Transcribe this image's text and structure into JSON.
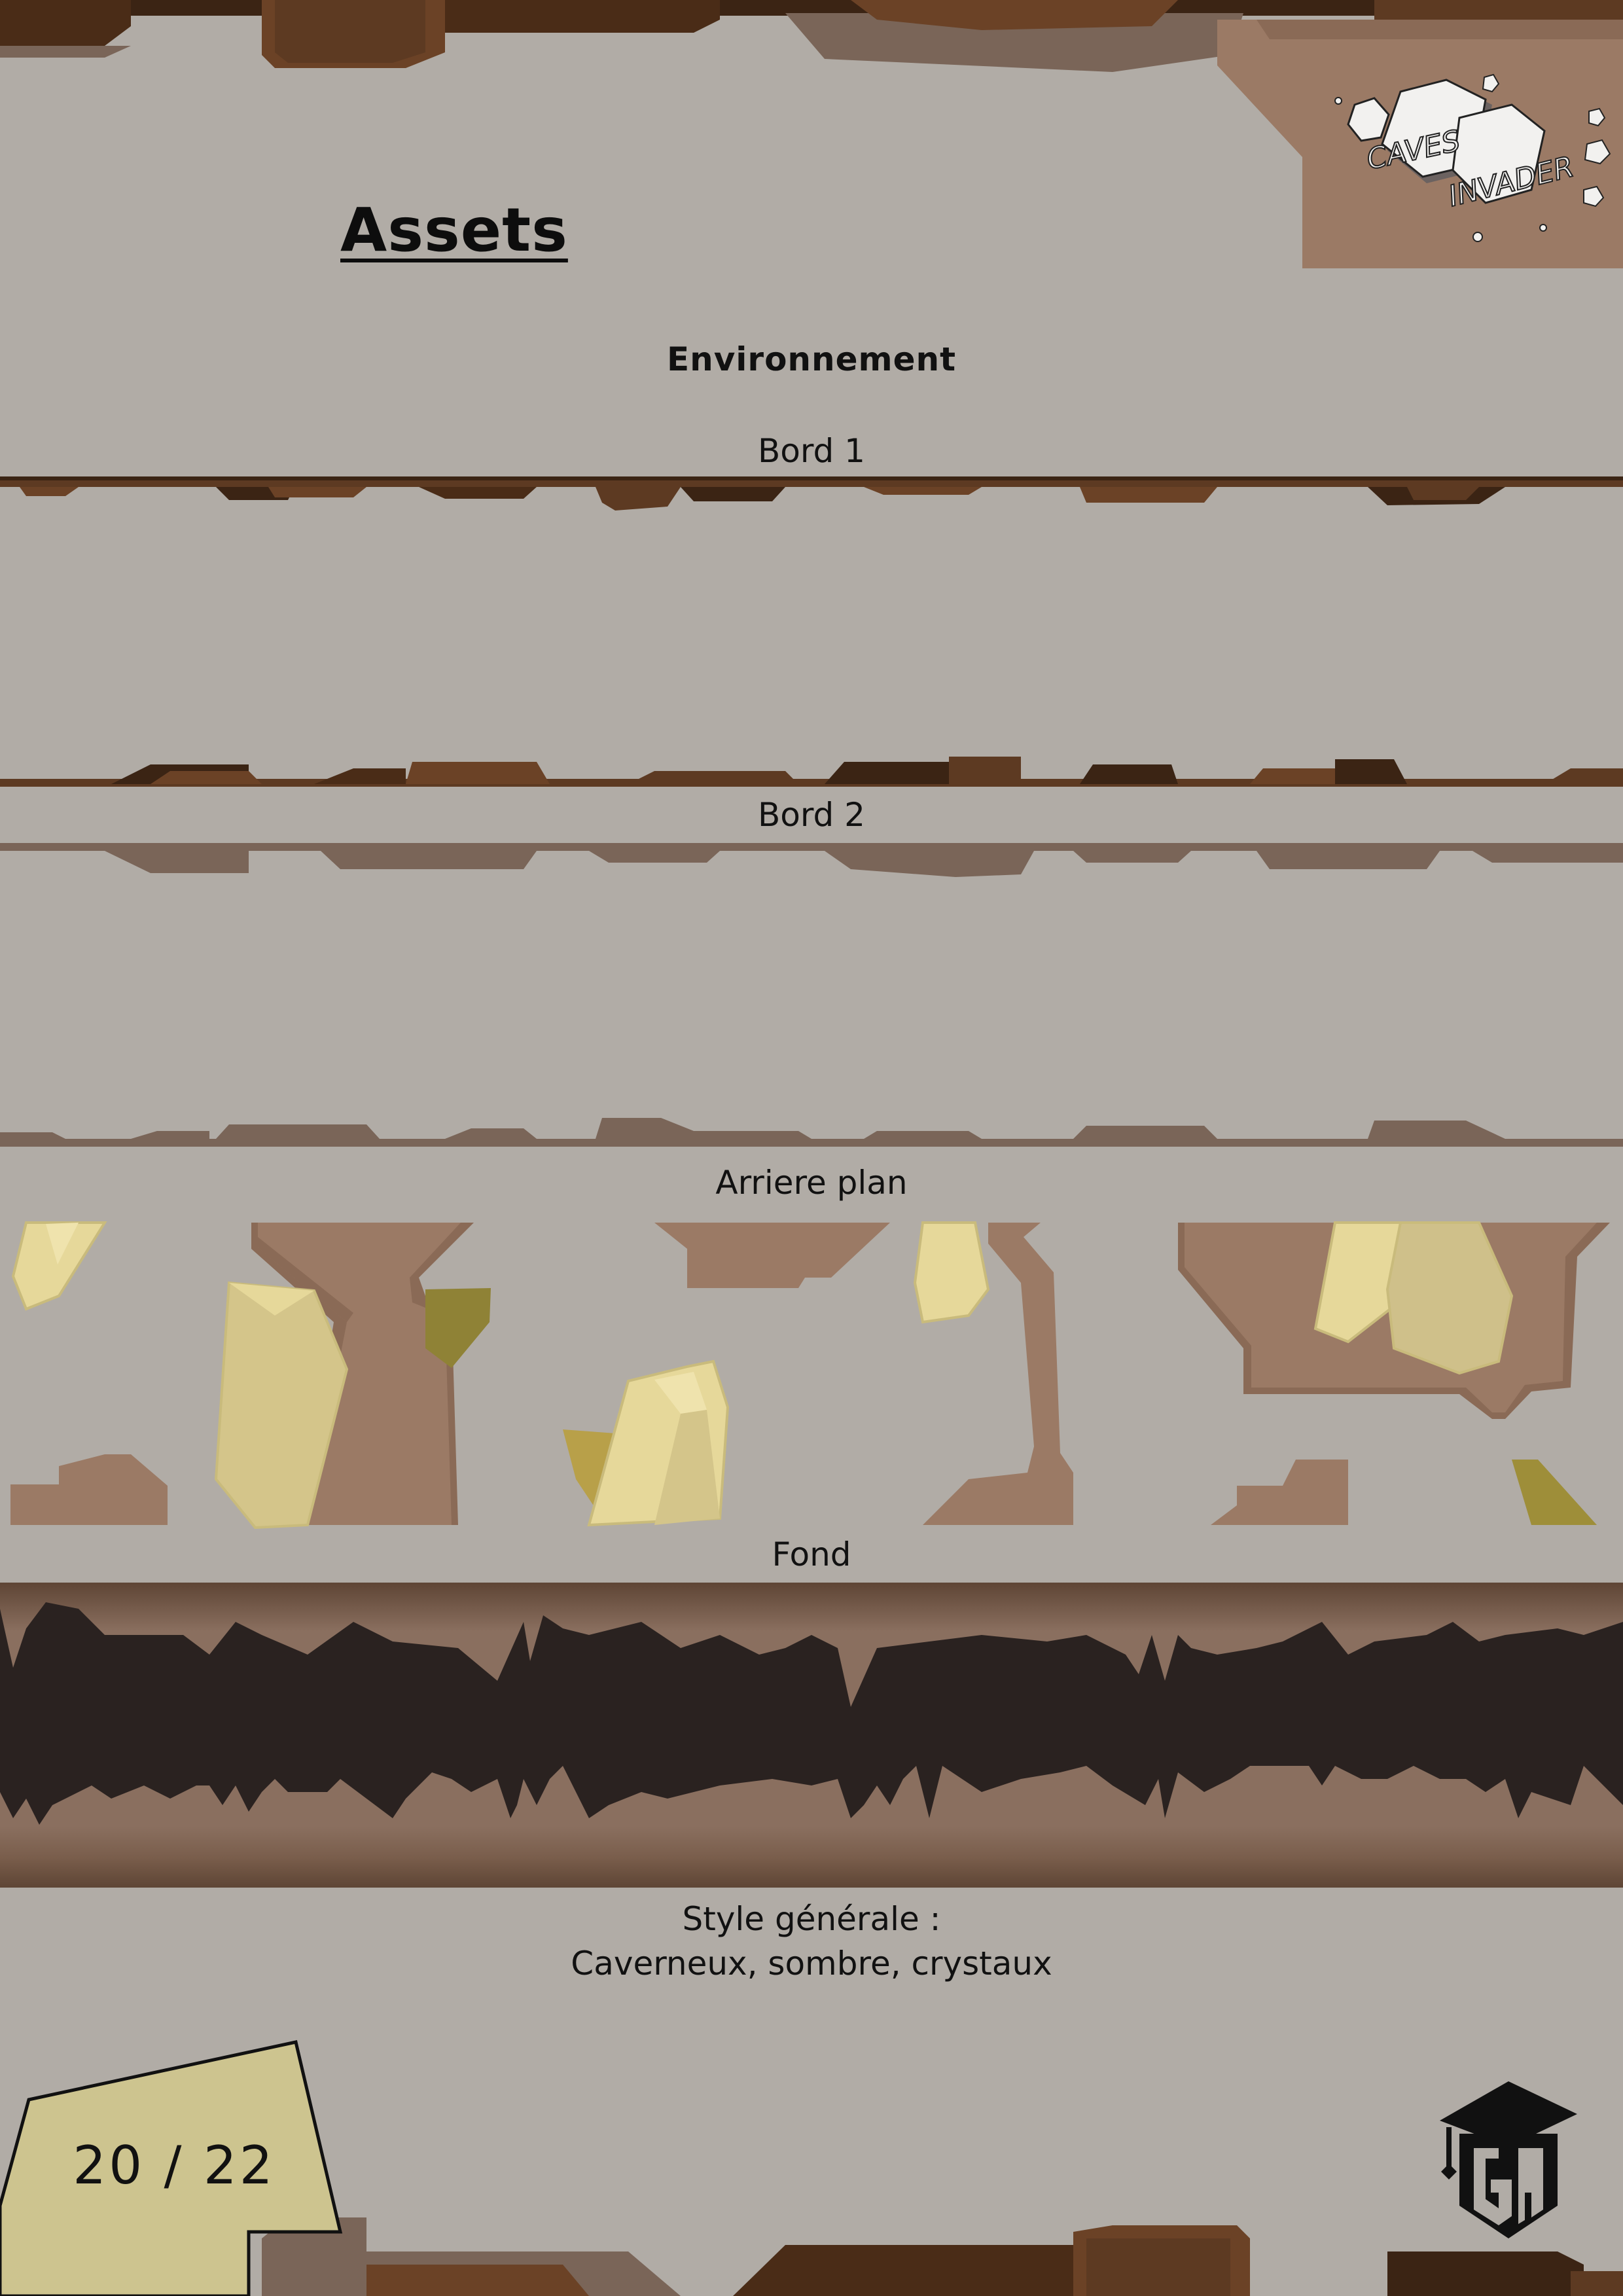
{
  "header": {
    "title": "Assets",
    "logo_words": [
      "CAVES",
      "INVADER"
    ]
  },
  "sections": {
    "environment": "Environnement",
    "border1": "Bord 1",
    "border2": "Bord 2",
    "background_layer": "Arriere plan",
    "backdrop": "Fond"
  },
  "style_note": {
    "label": "Style générale :",
    "value": "Caverneux, sombre, crystaux"
  },
  "footer": {
    "page_number": "20 / 22",
    "studio_logo_letters": "GA"
  },
  "colors": {
    "page_background": "#b1aca6",
    "rock_dark": "#5d3a22",
    "rock_darker": "#3b2414",
    "rock_light": "#9b7a65",
    "rock_muted": "#7a6558",
    "crystal": "#e6d89a",
    "crystal_shade": "#b8ab72",
    "moss": "#8f8236",
    "backdrop_dark": "#2a2220",
    "backdrop_light": "#7d6554",
    "page_tag": "#cdc48f"
  }
}
